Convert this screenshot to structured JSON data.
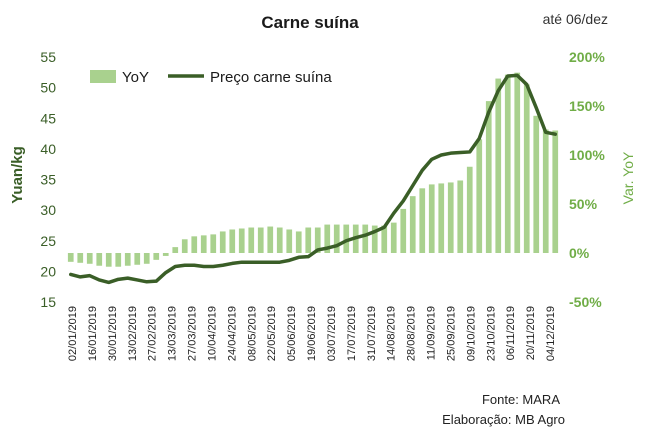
{
  "chart_data": {
    "type": "bar+line",
    "title": "Carne suína",
    "subtitle": "até 06/dez",
    "ylabel_left": "Yuan/kg",
    "ylabel_right": "Var. YoY",
    "ylim_left": [
      15,
      55
    ],
    "yticks_left": [
      "15",
      "20",
      "25",
      "30",
      "35",
      "40",
      "45",
      "50",
      "55"
    ],
    "ylim_right": [
      -50,
      200
    ],
    "yticks_right": [
      "-50%",
      "0%",
      "50%",
      "100%",
      "150%",
      "200%"
    ],
    "legend": {
      "position": "top-left",
      "bar_label": "YoY",
      "line_label": "Preço carne suína"
    },
    "x_tick_labels": [
      "02/01/2019",
      "16/01/2019",
      "30/01/2019",
      "13/02/2019",
      "27/02/2019",
      "13/03/2019",
      "27/03/2019",
      "10/04/2019",
      "24/04/2019",
      "08/05/2019",
      "22/05/2019",
      "05/06/2019",
      "19/06/2019",
      "03/07/2019",
      "17/07/2019",
      "31/07/2019",
      "14/08/2019",
      "28/08/2019",
      "11/09/2019",
      "25/09/2019",
      "09/10/2019",
      "23/10/2019",
      "06/11/2019",
      "20/11/2019",
      "04/12/2019"
    ],
    "series": [
      {
        "name": "YoY",
        "kind": "bar",
        "axis": "right",
        "color": "#a9d18e",
        "values": [
          -9,
          -10,
          -11,
          -13,
          -14,
          -14,
          -13,
          -12,
          -11,
          -7,
          -3,
          6,
          14,
          17,
          18,
          19,
          22,
          24,
          25,
          26,
          26,
          27,
          26,
          24,
          22,
          26,
          26,
          29,
          29,
          29,
          29,
          29,
          28,
          28,
          31,
          45,
          58,
          66,
          70,
          71,
          72,
          74,
          88,
          116,
          155,
          178,
          182,
          184,
          172,
          140,
          126,
          125
        ]
      },
      {
        "name": "Preço carne suína",
        "kind": "line",
        "axis": "left",
        "color": "#3a5e27",
        "values": [
          19.5,
          19.1,
          19.3,
          18.6,
          18.2,
          18.7,
          18.9,
          18.6,
          18.3,
          18.4,
          19.8,
          20.8,
          21.0,
          21.0,
          20.8,
          20.8,
          21.0,
          21.3,
          21.5,
          21.5,
          21.5,
          21.5,
          21.5,
          21.8,
          22.3,
          22.4,
          23.5,
          23.8,
          24.2,
          25.0,
          25.5,
          25.9,
          26.5,
          27.2,
          29.5,
          31.5,
          34.0,
          36.5,
          38.3,
          39.0,
          39.3,
          39.4,
          39.5,
          41.7,
          46.0,
          49.5,
          51.9,
          52.0,
          50.5,
          46.7,
          42.7,
          42.4
        ]
      }
    ],
    "sources": {
      "fonte": "Fonte:  MARA",
      "elaboracao": "Elaboração: MB Agro"
    }
  }
}
